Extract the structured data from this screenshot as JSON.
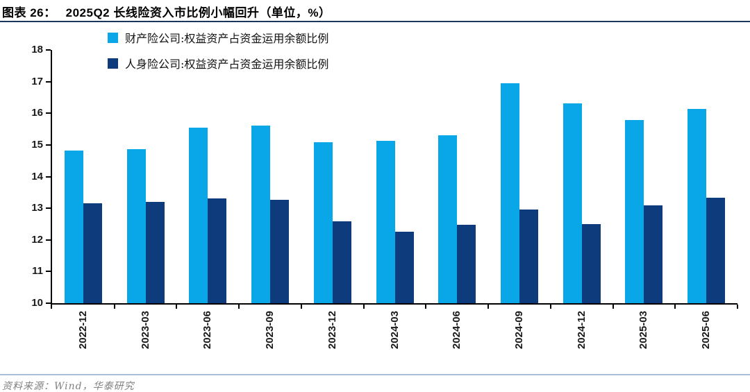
{
  "header": {
    "figure_label": "图表 26：",
    "title": "2025Q2 长线险资入市比例小幅回升（单位，%）"
  },
  "footer": {
    "source": "资料来源：Wind，华泰研究"
  },
  "colors": {
    "property_series": "#0aa7e8",
    "life_series": "#0d3b7c",
    "title_rule": "#17375e",
    "footer_rule": "#a9bedb",
    "axis": "#000000",
    "tick_text": "#1a1a1a",
    "footer_text": "#808080"
  },
  "chart_data": {
    "type": "bar",
    "title": "2025Q2 长线险资入市比例小幅回升（单位，%）",
    "categories": [
      "2022-12",
      "2023-03",
      "2023-06",
      "2023-09",
      "2023-12",
      "2024-03",
      "2024-06",
      "2024-09",
      "2024-12",
      "2025-03",
      "2025-06"
    ],
    "series": [
      {
        "name": "财产险公司:权益资产占资金运用余额比例",
        "color": "#0aa7e8",
        "values": [
          14.82,
          14.87,
          15.55,
          15.62,
          15.08,
          15.12,
          15.3,
          16.95,
          16.32,
          15.78,
          16.14
        ]
      },
      {
        "name": "人身险公司:权益资产占资金运用余额比例",
        "color": "#0d3b7c",
        "values": [
          13.15,
          13.2,
          13.3,
          13.26,
          12.58,
          12.25,
          12.48,
          12.95,
          12.5,
          13.08,
          13.34
        ]
      }
    ],
    "xlabel": "",
    "ylabel": "",
    "ylim": [
      10,
      18
    ],
    "ytick_step": 1,
    "grid": false,
    "legend_position": "top-left-inside"
  }
}
